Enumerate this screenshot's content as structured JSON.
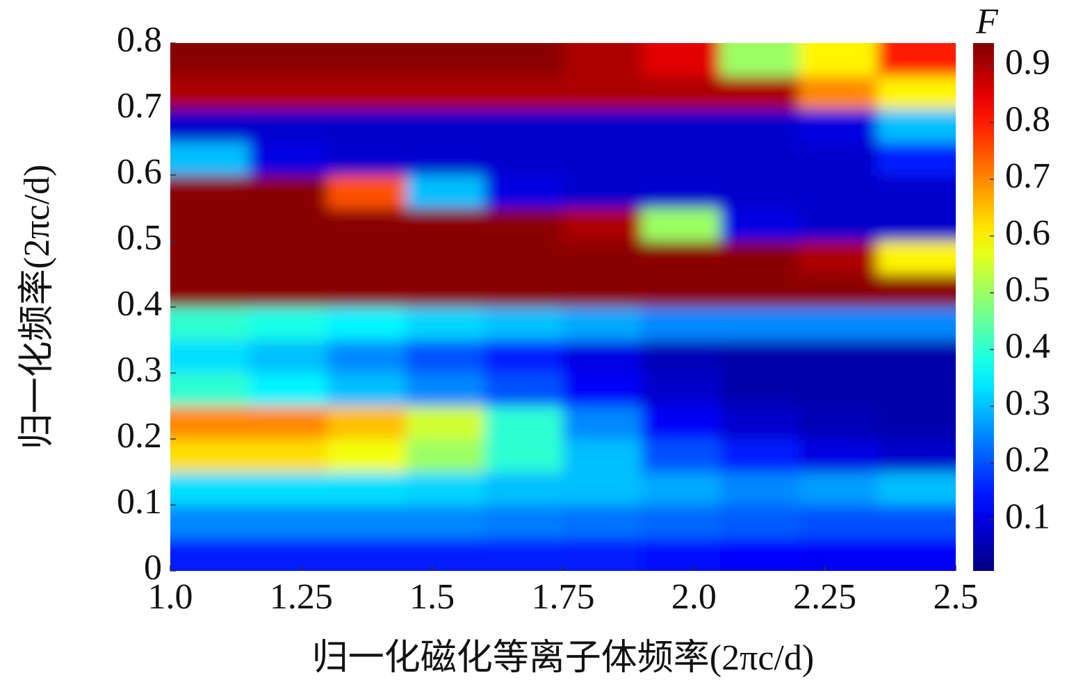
{
  "chart_data": {
    "type": "heatmap",
    "x_label": "归一化磁化等离子体频率(2πc/d)",
    "y_label": "归一化频率(2πc/d)",
    "colorbar_label": "F",
    "colormap": "jet",
    "x": [
      1.075,
      1.225,
      1.375,
      1.525,
      1.675,
      1.825,
      1.975,
      2.125,
      2.275,
      2.425
    ],
    "y": [
      0.025,
      0.075,
      0.125,
      0.175,
      0.225,
      0.275,
      0.325,
      0.375,
      0.425,
      0.475,
      0.525,
      0.575,
      0.625,
      0.675,
      0.725,
      0.775
    ],
    "z": [
      [
        0.15,
        0.15,
        0.15,
        0.15,
        0.15,
        0.15,
        0.14,
        0.13,
        0.12,
        0.12
      ],
      [
        0.25,
        0.25,
        0.25,
        0.25,
        0.24,
        0.23,
        0.22,
        0.21,
        0.2,
        0.2
      ],
      [
        0.33,
        0.33,
        0.33,
        0.32,
        0.3,
        0.3,
        0.28,
        0.25,
        0.27,
        0.3
      ],
      [
        0.62,
        0.62,
        0.58,
        0.5,
        0.4,
        0.3,
        0.2,
        0.15,
        0.1,
        0.08
      ],
      [
        0.7,
        0.7,
        0.65,
        0.55,
        0.4,
        0.25,
        0.12,
        0.08,
        0.06,
        0.05
      ],
      [
        0.4,
        0.35,
        0.3,
        0.25,
        0.2,
        0.12,
        0.08,
        0.05,
        0.05,
        0.05
      ],
      [
        0.33,
        0.3,
        0.25,
        0.2,
        0.15,
        0.1,
        0.06,
        0.05,
        0.05,
        0.05
      ],
      [
        0.4,
        0.38,
        0.35,
        0.32,
        0.3,
        0.28,
        0.25,
        0.25,
        0.25,
        0.25
      ],
      [
        0.93,
        0.93,
        0.93,
        0.93,
        0.93,
        0.93,
        0.93,
        0.93,
        0.93,
        0.93
      ],
      [
        0.93,
        0.93,
        0.93,
        0.93,
        0.93,
        0.93,
        0.93,
        0.93,
        0.9,
        0.6
      ],
      [
        0.93,
        0.93,
        0.93,
        0.93,
        0.93,
        0.9,
        0.5,
        0.1,
        0.08,
        0.08
      ],
      [
        0.93,
        0.93,
        0.75,
        0.3,
        0.1,
        0.08,
        0.08,
        0.08,
        0.08,
        0.08
      ],
      [
        0.3,
        0.1,
        0.08,
        0.08,
        0.08,
        0.08,
        0.08,
        0.08,
        0.08,
        0.15
      ],
      [
        0.08,
        0.08,
        0.08,
        0.08,
        0.08,
        0.08,
        0.08,
        0.08,
        0.1,
        0.3
      ],
      [
        0.9,
        0.9,
        0.9,
        0.9,
        0.9,
        0.9,
        0.9,
        0.9,
        0.7,
        0.6
      ],
      [
        0.93,
        0.93,
        0.93,
        0.93,
        0.93,
        0.9,
        0.85,
        0.5,
        0.6,
        0.8
      ]
    ],
    "xlim": [
      1,
      2.5
    ],
    "ylim": [
      0,
      0.8
    ],
    "xticks": [
      {
        "value": 1,
        "label": "1.0"
      },
      1.25,
      1.5,
      1.75,
      {
        "value": 2,
        "label": "2.0"
      },
      2.25,
      2.5
    ],
    "yticks": [
      0,
      0.1,
      0.2,
      0.3,
      0.4,
      0.5,
      0.6,
      0.7,
      0.8
    ],
    "clim": [
      0.01,
      0.94
    ],
    "cticks": [
      0.1,
      0.2,
      0.3,
      0.4,
      0.5,
      0.6,
      0.7,
      0.8,
      0.9
    ]
  }
}
